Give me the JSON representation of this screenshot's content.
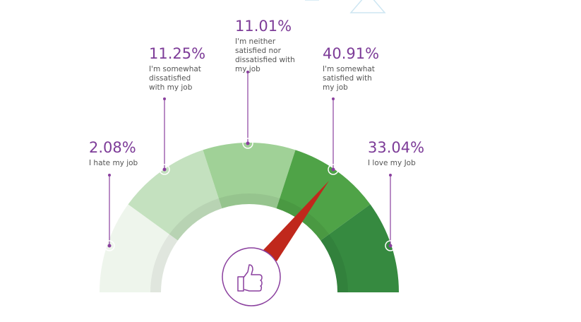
{
  "chart_data": {
    "type": "gauge",
    "categories": [
      "I hate my job",
      "I'm somewhat dissatisfied with my job",
      "I'm neither satisfied nor dissatisfied with my job",
      "I'm somewhat satisfied with my job",
      "I love my Job"
    ],
    "values": [
      2.08,
      11.25,
      11.01,
      40.91,
      33.04
    ],
    "value_labels": [
      "2.08%",
      "11.25%",
      "11.01%",
      "40.91%",
      "33.04%"
    ],
    "colors": [
      "#eef5ec",
      "#c4e1bf",
      "#a0d197",
      "#4fa347",
      "#368a40"
    ]
  }
}
